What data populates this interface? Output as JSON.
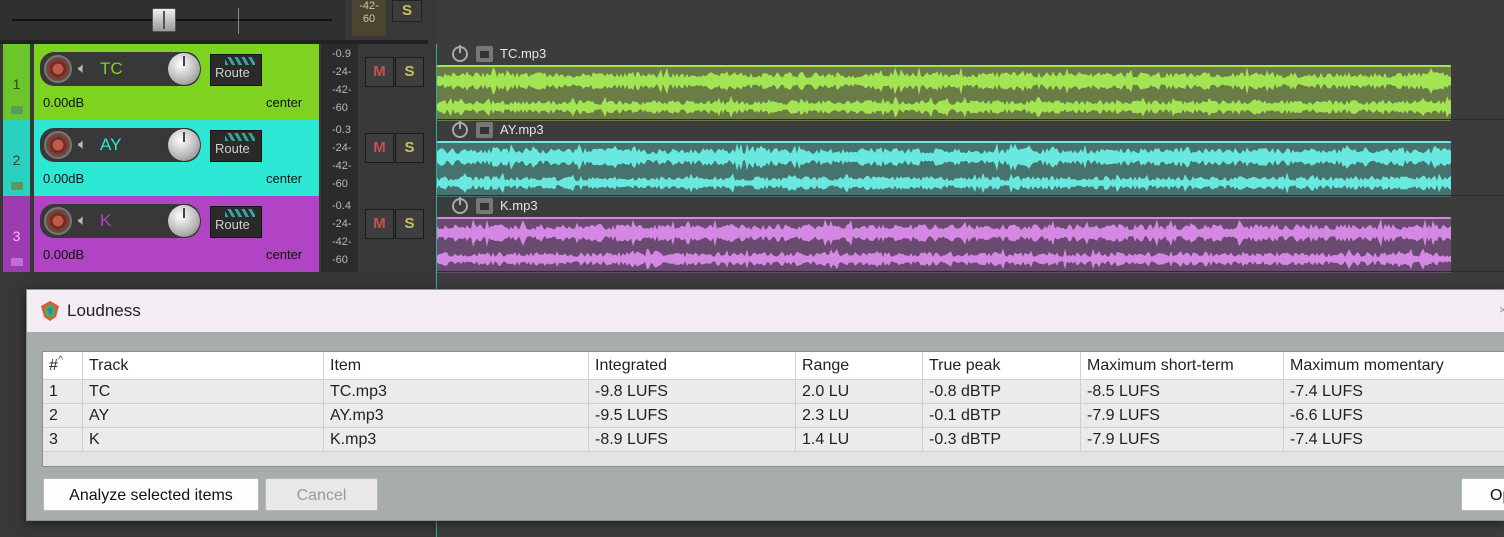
{
  "master": {
    "meter_labels": [
      "-42-",
      "60"
    ],
    "solo_label": "S"
  },
  "tracks": [
    {
      "num": "1",
      "name": "TC",
      "volume": "0.00dB",
      "pan": "center",
      "route_label": "Route",
      "meter_labels": [
        "-0.9",
        "-24-",
        "-42-",
        "-60"
      ],
      "mute_label": "M",
      "solo_label": "S",
      "color": "#7ed321",
      "num_bg": "#6cc52a",
      "wave_bg": "#6a7d46",
      "wave_fg": "#a2e452",
      "item_name": "TC.mp3"
    },
    {
      "num": "2",
      "name": "AY",
      "volume": "0.00dB",
      "pan": "center",
      "route_label": "Route",
      "meter_labels": [
        "-0.3",
        "-24-",
        "-42-",
        "-60"
      ],
      "mute_label": "M",
      "solo_label": "S",
      "color": "#2ee8d6",
      "num_bg": "#2ad0c0",
      "wave_bg": "#46736e",
      "wave_fg": "#68e8de",
      "item_name": "AY.mp3"
    },
    {
      "num": "3",
      "name": "K",
      "volume": "0.00dB",
      "pan": "center",
      "route_label": "Route",
      "meter_labels": [
        "-0.4",
        "-24-",
        "-42-",
        "-60"
      ],
      "mute_label": "M",
      "solo_label": "S",
      "color": "#b044c4",
      "num_bg": "#9c3cb0",
      "wave_bg": "#6a4a70",
      "wave_fg": "#d488e4",
      "item_name": "K.mp3"
    }
  ],
  "dialog": {
    "title": "Loudness",
    "close_glyph": "×",
    "columns": [
      "#",
      "Track",
      "Item",
      "Integrated",
      "Range",
      "True peak",
      "Maximum short-term",
      "Maximum momentary"
    ],
    "sort_glyph": "^",
    "rows": [
      [
        "1",
        "TC",
        "TC.mp3",
        "-9.8 LUFS",
        "2.0 LU",
        "-0.8 dBTP",
        "-8.5 LUFS",
        "-7.4 LUFS"
      ],
      [
        "2",
        "AY",
        "AY.mp3",
        "-9.5 LUFS",
        "2.3 LU",
        "-0.1 dBTP",
        "-7.9 LUFS",
        "-6.6 LUFS"
      ],
      [
        "3",
        "K",
        "K.mp3",
        "-8.9 LUFS",
        "1.4 LU",
        "-0.3 dBTP",
        "-7.9 LUFS",
        "-7.4 LUFS"
      ]
    ],
    "analyze_label": "Analyze selected items",
    "cancel_label": "Cancel",
    "op_label": "Op"
  },
  "icons": {
    "speaker": "speaker-icon",
    "power": "power-icon",
    "lock": "lock-icon",
    "folder": "folder-icon",
    "logo": "reaper-logo-icon"
  }
}
